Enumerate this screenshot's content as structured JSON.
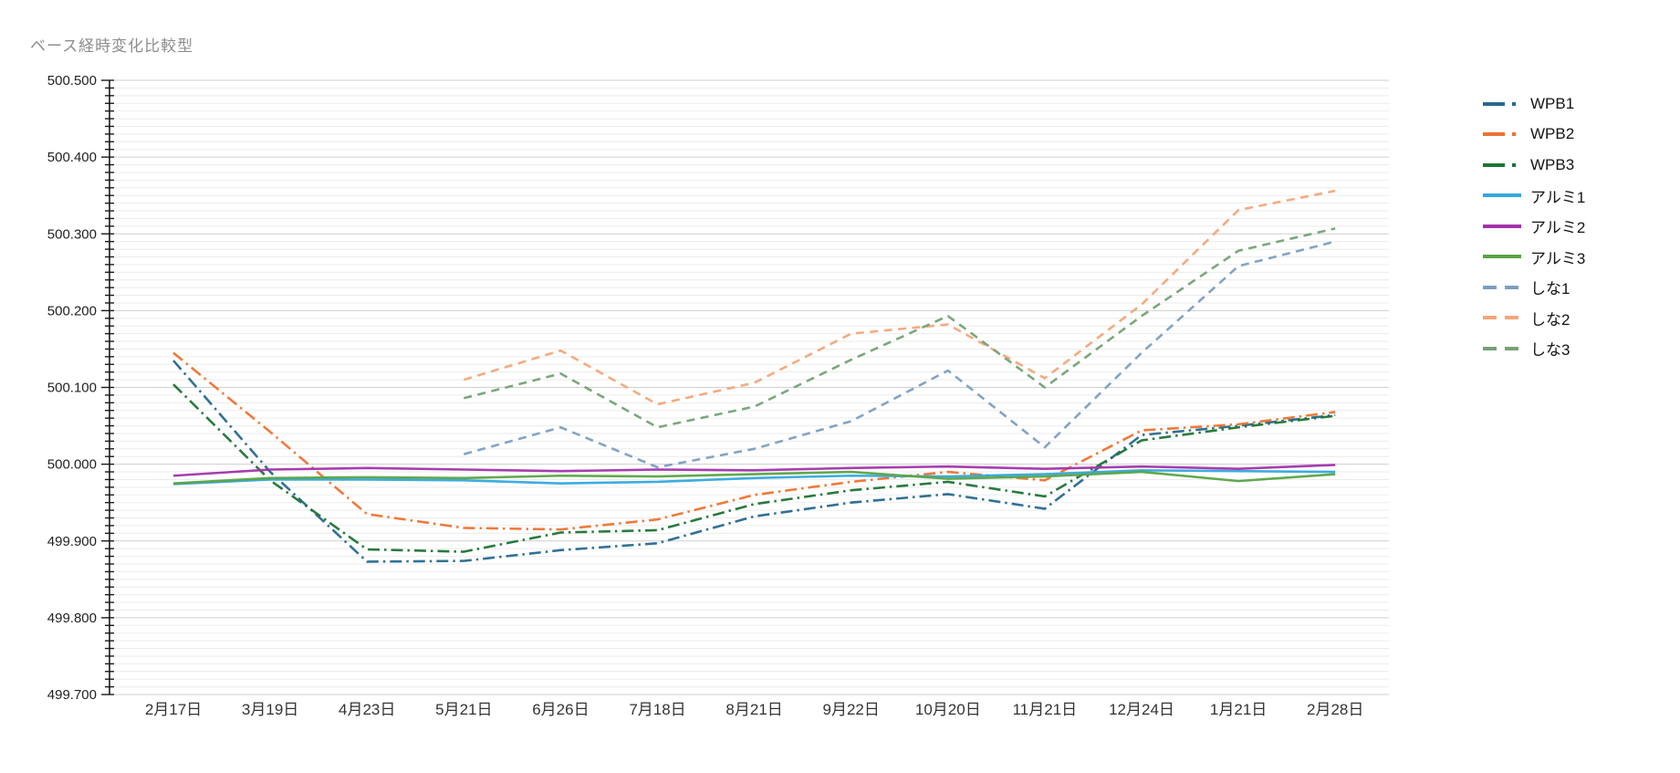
{
  "title": "ベース経時変化比較型",
  "chart_data": {
    "type": "line",
    "title": "ベース経時変化比較型",
    "xlabel": "",
    "ylabel": "",
    "grid": true,
    "legend_position": "right",
    "categories": [
      "2月17日",
      "3月19日",
      "4月23日",
      "5月21日",
      "6月26日",
      "7月18日",
      "8月21日",
      "9月22日",
      "10月20日",
      "11月21日",
      "12月24日",
      "1月21日",
      "2月28日"
    ],
    "yaxis": {
      "min": 499.7,
      "max": 500.5,
      "minor_step": 0.01,
      "major_step": 0.1,
      "tick_labels": [
        "499.700",
        "499.800",
        "499.900",
        "500.000",
        "500.100",
        "500.200",
        "500.300",
        "500.400",
        "500.500"
      ]
    },
    "series": [
      {
        "name": "WPB1",
        "color": "#26698f",
        "style": "dashdot",
        "values": [
          500.135,
          499.99,
          499.873,
          499.874,
          499.888,
          499.897,
          499.932,
          499.95,
          499.961,
          499.942,
          500.038,
          500.05,
          500.064
        ]
      },
      {
        "name": "WPB2",
        "color": "#ed7330",
        "style": "dashdot",
        "values": [
          500.145,
          500.042,
          499.935,
          499.917,
          499.915,
          499.928,
          499.96,
          499.977,
          499.99,
          499.979,
          500.044,
          500.052,
          500.068
        ]
      },
      {
        "name": "WPB3",
        "color": "#1e7335",
        "style": "dashdot",
        "values": [
          500.104,
          499.979,
          499.889,
          499.886,
          499.911,
          499.914,
          499.948,
          499.966,
          499.977,
          499.958,
          500.031,
          500.048,
          500.063
        ]
      },
      {
        "name": "アルミ1",
        "color": "#33a8dd",
        "style": "solid",
        "values": [
          499.974,
          499.98,
          499.98,
          499.979,
          499.975,
          499.977,
          499.982,
          499.985,
          499.984,
          499.987,
          499.992,
          499.991,
          499.99
        ]
      },
      {
        "name": "アルミ2",
        "color": "#a233ab",
        "style": "solid",
        "values": [
          499.985,
          499.993,
          499.995,
          499.993,
          499.991,
          499.993,
          499.992,
          499.995,
          499.997,
          499.994,
          499.997,
          499.994,
          499.999
        ]
      },
      {
        "name": "アルミ3",
        "color": "#58a444",
        "style": "solid",
        "values": [
          499.975,
          499.982,
          499.983,
          499.982,
          499.985,
          499.984,
          499.987,
          499.99,
          499.981,
          499.984,
          499.99,
          499.978,
          499.987
        ]
      },
      {
        "name": "しな1",
        "color": "#7b9fc0",
        "style": "dashed",
        "values": [
          null,
          null,
          null,
          500.013,
          500.048,
          499.996,
          500.02,
          500.056,
          500.122,
          500.022,
          500.145,
          500.258,
          500.29
        ]
      },
      {
        "name": "しな2",
        "color": "#f3a678",
        "style": "dashed",
        "values": [
          null,
          null,
          null,
          500.11,
          500.148,
          500.078,
          500.106,
          500.17,
          500.182,
          500.112,
          500.208,
          500.331,
          500.356
        ]
      },
      {
        "name": "しな3",
        "color": "#74a275",
        "style": "dashed",
        "values": [
          null,
          null,
          null,
          500.086,
          500.118,
          500.048,
          500.075,
          500.136,
          500.193,
          500.1,
          500.193,
          500.278,
          500.307
        ]
      }
    ]
  }
}
